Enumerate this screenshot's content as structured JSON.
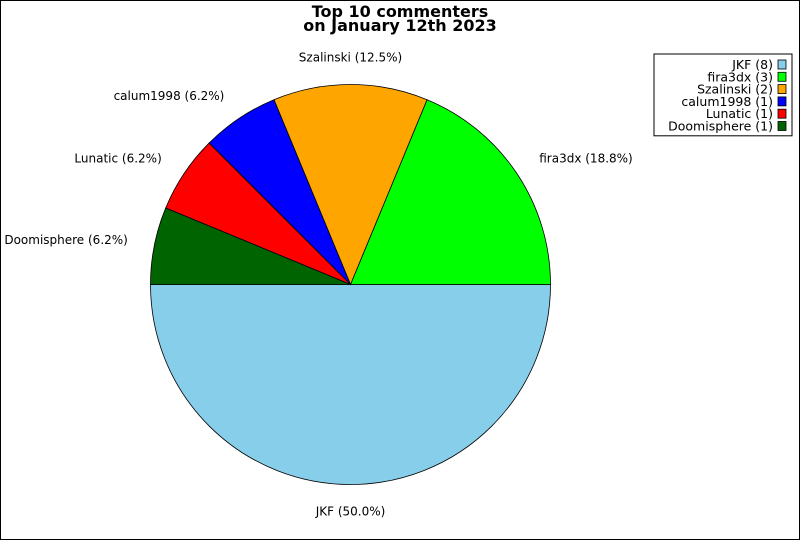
{
  "chart_data": {
    "type": "pie",
    "title": "Top 10 commenters\non January 12th 2023",
    "title_lines": [
      "Top 10 commenters",
      "on January 12th 2023"
    ],
    "slices": [
      {
        "name": "JKF",
        "count": 8,
        "percent_label": "JKF (50.0%)",
        "legend_label": "JKF (8)",
        "color": "#87ceeb"
      },
      {
        "name": "fira3dx",
        "count": 3,
        "percent_label": "fira3dx (18.8%)",
        "legend_label": "fira3dx (3)",
        "color": "#00ff00"
      },
      {
        "name": "Szalinski",
        "count": 2,
        "percent_label": "Szalinski (12.5%)",
        "legend_label": "Szalinski (2)",
        "color": "#ffa500"
      },
      {
        "name": "calum1998",
        "count": 1,
        "percent_label": "calum1998 (6.2%)",
        "legend_label": "calum1998 (1)",
        "color": "#0000ff"
      },
      {
        "name": "Lunatic",
        "count": 1,
        "percent_label": "Lunatic (6.2%)",
        "legend_label": "Lunatic (1)",
        "color": "#ff0000"
      },
      {
        "name": "Doomisphere",
        "count": 1,
        "percent_label": "Doomisphere (6.2%)",
        "legend_label": "Doomisphere (1)",
        "color": "#006400"
      }
    ],
    "start_angle_deg": 180,
    "direction": "counterclockwise",
    "legend_position": "top-right"
  }
}
